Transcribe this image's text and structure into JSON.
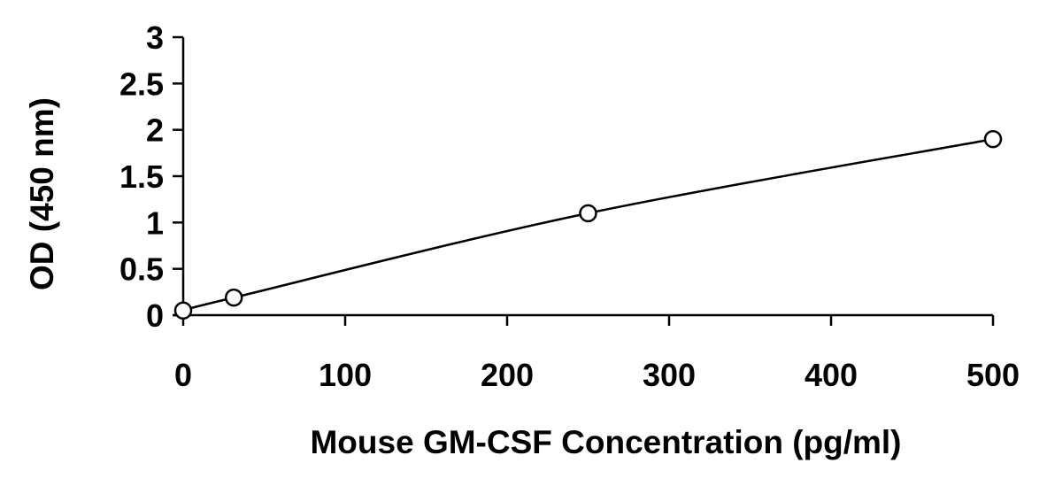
{
  "chart_data": {
    "type": "scatter",
    "title": "",
    "xlabel": "Mouse GM-CSF Concentration (pg/ml)",
    "ylabel": "OD (450 nm)",
    "xlim": [
      0,
      500
    ],
    "ylim": [
      0,
      3
    ],
    "x_ticks": [
      "0",
      "100",
      "200",
      "300",
      "400",
      "500"
    ],
    "y_ticks": [
      "0",
      "0.5",
      "1",
      "1.5",
      "2",
      "2.5",
      "3"
    ],
    "grid": false,
    "legend": "none",
    "series": [
      {
        "x": [
          0,
          31.25,
          250,
          500
        ],
        "y": [
          0.05,
          0.19,
          1.1,
          1.9
        ],
        "marker": "open-circle",
        "trendline": "smooth-curve",
        "color": "#000000"
      }
    ]
  }
}
